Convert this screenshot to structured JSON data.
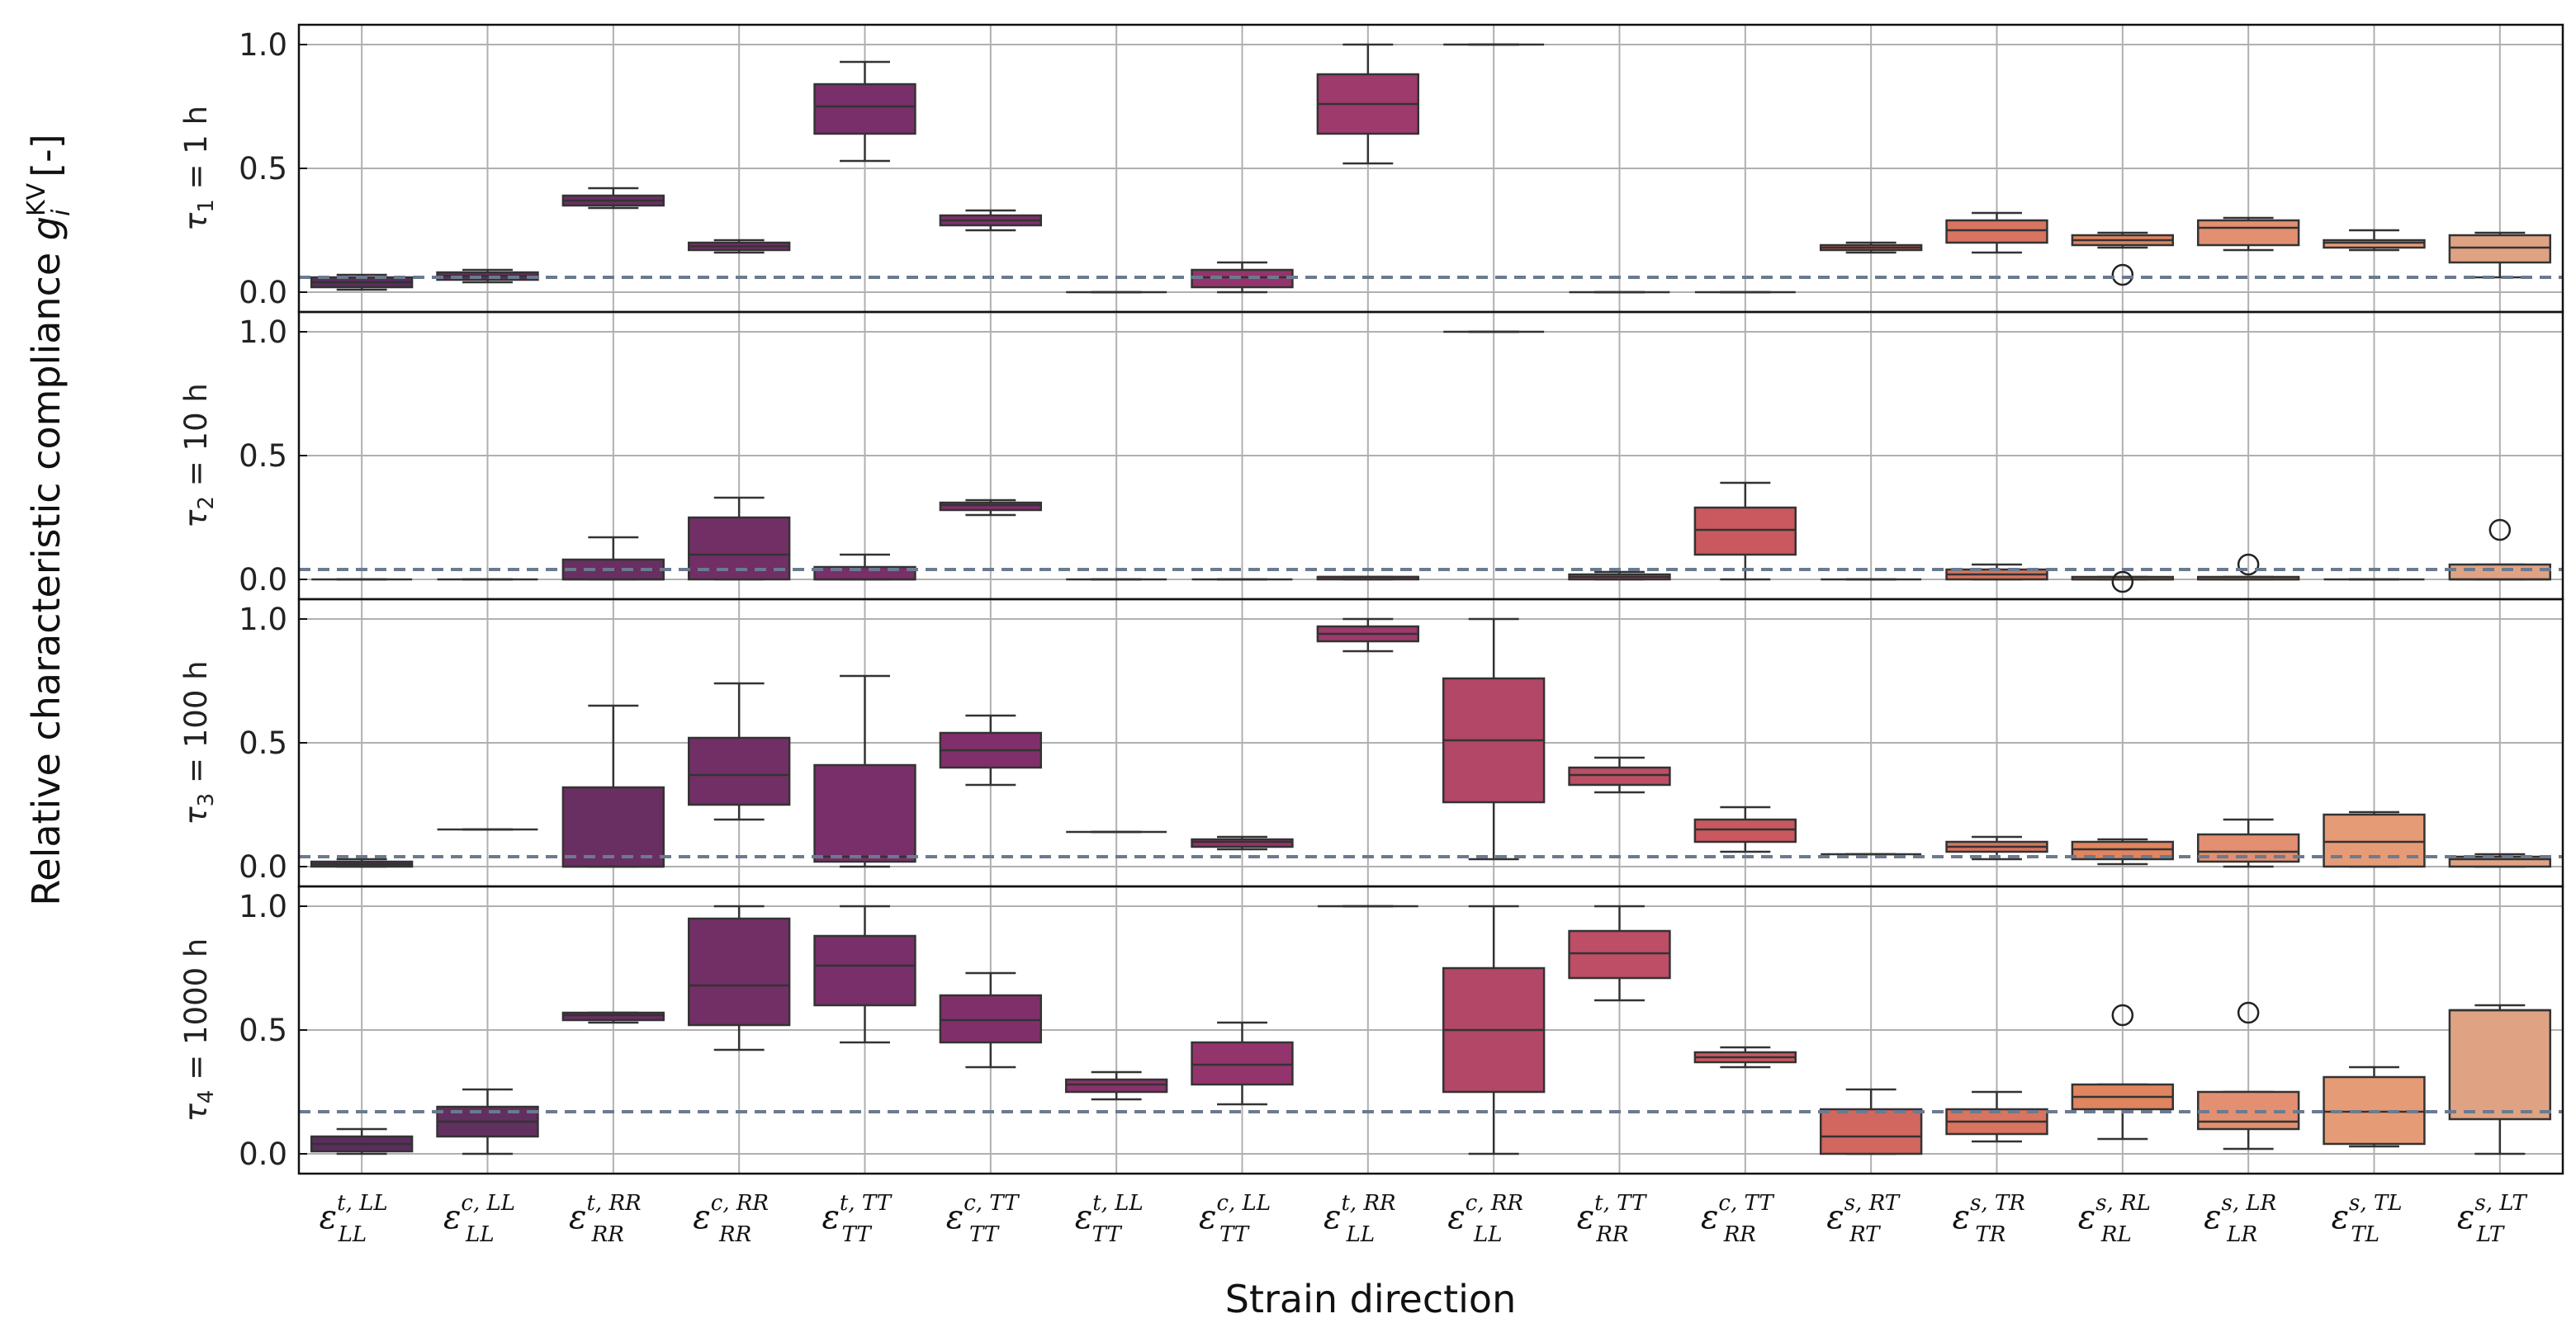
{
  "chart_data": {
    "type": "boxplot",
    "xlabel": "Strain direction",
    "ylabel": {
      "prefix": "Relative characteristic compliance ",
      "symbol": "g",
      "sub": "i",
      "sup": "KV",
      "suffix": " [-]"
    },
    "ylim": [
      -0.08,
      1.08
    ],
    "yticks": [
      0.0,
      0.5,
      1.0
    ],
    "ytick_labels": [
      "0.0",
      "0.5",
      "1.0"
    ],
    "categories": [
      {
        "sym": "ε",
        "sub": "LL",
        "sup": "t, LL"
      },
      {
        "sym": "ε",
        "sub": "LL",
        "sup": "c, LL"
      },
      {
        "sym": "ε",
        "sub": "RR",
        "sup": "t, RR"
      },
      {
        "sym": "ε",
        "sub": "RR",
        "sup": "c, RR"
      },
      {
        "sym": "ε",
        "sub": "TT",
        "sup": "t, TT"
      },
      {
        "sym": "ε",
        "sub": "TT",
        "sup": "c, TT"
      },
      {
        "sym": "ε",
        "sub": "TT",
        "sup": "t, LL"
      },
      {
        "sym": "ε",
        "sub": "TT",
        "sup": "c, LL"
      },
      {
        "sym": "ε",
        "sub": "LL",
        "sup": "t, RR"
      },
      {
        "sym": "ε",
        "sub": "LL",
        "sup": "c, RR"
      },
      {
        "sym": "ε",
        "sub": "RR",
        "sup": "t, TT"
      },
      {
        "sym": "ε",
        "sub": "RR",
        "sup": "c, TT"
      },
      {
        "sym": "ε",
        "sub": "RT",
        "sup": "s, RT"
      },
      {
        "sym": "ε",
        "sub": "TR",
        "sup": "s, TR"
      },
      {
        "sym": "ε",
        "sub": "RL",
        "sup": "s, RL"
      },
      {
        "sym": "ε",
        "sub": "LR",
        "sup": "s, LR"
      },
      {
        "sym": "ε",
        "sub": "TL",
        "sup": "s, TL"
      },
      {
        "sym": "ε",
        "sub": "LT",
        "sup": "s, LT"
      }
    ],
    "palette": [
      "#5a2d5e",
      "#61305f",
      "#692f62",
      "#712f66",
      "#792f69",
      "#812f6b",
      "#8a316c",
      "#94346c",
      "#9e3a6c",
      "#b34767",
      "#bd4e66",
      "#c9595f",
      "#d1675f",
      "#d8745f",
      "#e0855f",
      "#e29071",
      "#e69b77",
      "#dfa384"
    ],
    "reference_line_color": "#6b7a8f",
    "panels": [
      {
        "label": "τ1 = 1 h",
        "tau": "τ",
        "tau_sub": "1",
        "tau_rest": " = 1 h",
        "reference": 0.06,
        "boxes": [
          {
            "min": 0.01,
            "q1": 0.02,
            "med": 0.04,
            "q3": 0.06,
            "max": 0.07
          },
          {
            "min": 0.04,
            "q1": 0.05,
            "med": 0.065,
            "q3": 0.08,
            "max": 0.09
          },
          {
            "min": 0.34,
            "q1": 0.35,
            "med": 0.37,
            "q3": 0.39,
            "max": 0.42
          },
          {
            "min": 0.16,
            "q1": 0.17,
            "med": 0.185,
            "q3": 0.2,
            "max": 0.21
          },
          {
            "min": 0.53,
            "q1": 0.64,
            "med": 0.75,
            "q3": 0.84,
            "max": 0.93
          },
          {
            "min": 0.25,
            "q1": 0.27,
            "med": 0.29,
            "q3": 0.31,
            "max": 0.33
          },
          {
            "min": 0.0,
            "q1": 0.0,
            "med": 0.0,
            "q3": 0.0,
            "max": 0.0
          },
          {
            "min": 0.0,
            "q1": 0.02,
            "med": 0.06,
            "q3": 0.09,
            "max": 0.12
          },
          {
            "min": 0.52,
            "q1": 0.64,
            "med": 0.76,
            "q3": 0.88,
            "max": 1.0
          },
          {
            "min": 1.0,
            "q1": 1.0,
            "med": 1.0,
            "q3": 1.0,
            "max": 1.0
          },
          {
            "min": 0.0,
            "q1": 0.0,
            "med": 0.0,
            "q3": 0.0,
            "max": 0.0
          },
          {
            "min": 0.0,
            "q1": 0.0,
            "med": 0.0,
            "q3": 0.0,
            "max": 0.0
          },
          {
            "min": 0.16,
            "q1": 0.17,
            "med": 0.18,
            "q3": 0.19,
            "max": 0.2
          },
          {
            "min": 0.16,
            "q1": 0.2,
            "med": 0.25,
            "q3": 0.29,
            "max": 0.32
          },
          {
            "min": 0.18,
            "q1": 0.19,
            "med": 0.21,
            "q3": 0.23,
            "max": 0.24,
            "outliers": [
              0.07
            ]
          },
          {
            "min": 0.17,
            "q1": 0.19,
            "med": 0.26,
            "q3": 0.29,
            "max": 0.3
          },
          {
            "min": 0.17,
            "q1": 0.18,
            "med": 0.2,
            "q3": 0.21,
            "max": 0.25
          },
          {
            "min": 0.06,
            "q1": 0.12,
            "med": 0.18,
            "q3": 0.23,
            "max": 0.24
          }
        ]
      },
      {
        "label": "τ2 = 10 h",
        "tau": "τ",
        "tau_sub": "2",
        "tau_rest": " = 10 h",
        "reference": 0.04,
        "boxes": [
          {
            "min": 0.0,
            "q1": 0.0,
            "med": 0.0,
            "q3": 0.0,
            "max": 0.0
          },
          {
            "min": 0.0,
            "q1": 0.0,
            "med": 0.0,
            "q3": 0.0,
            "max": 0.0
          },
          {
            "min": 0.0,
            "q1": 0.0,
            "med": 0.0,
            "q3": 0.08,
            "max": 0.17
          },
          {
            "min": 0.0,
            "q1": 0.0,
            "med": 0.1,
            "q3": 0.25,
            "max": 0.33
          },
          {
            "min": 0.0,
            "q1": 0.0,
            "med": 0.0,
            "q3": 0.05,
            "max": 0.1
          },
          {
            "min": 0.26,
            "q1": 0.28,
            "med": 0.3,
            "q3": 0.31,
            "max": 0.32
          },
          {
            "min": 0.0,
            "q1": 0.0,
            "med": 0.0,
            "q3": 0.0,
            "max": 0.0
          },
          {
            "min": 0.0,
            "q1": 0.0,
            "med": 0.0,
            "q3": 0.0,
            "max": 0.0
          },
          {
            "min": 0.0,
            "q1": 0.0,
            "med": 0.01,
            "q3": 0.01,
            "max": 0.01
          },
          {
            "min": 1.0,
            "q1": 1.0,
            "med": 1.0,
            "q3": 1.0,
            "max": 1.0
          },
          {
            "min": 0.0,
            "q1": 0.0,
            "med": 0.01,
            "q3": 0.02,
            "max": 0.03
          },
          {
            "min": 0.0,
            "q1": 0.1,
            "med": 0.2,
            "q3": 0.29,
            "max": 0.39
          },
          {
            "min": 0.0,
            "q1": 0.0,
            "med": 0.0,
            "q3": 0.0,
            "max": 0.0
          },
          {
            "min": 0.0,
            "q1": 0.0,
            "med": 0.02,
            "q3": 0.04,
            "max": 0.06
          },
          {
            "min": 0.0,
            "q1": 0.0,
            "med": 0.0,
            "q3": 0.01,
            "max": 0.01,
            "outliers": [
              -0.01
            ]
          },
          {
            "min": 0.0,
            "q1": 0.0,
            "med": 0.0,
            "q3": 0.01,
            "max": 0.01,
            "outliers": [
              0.06
            ]
          },
          {
            "min": 0.0,
            "q1": 0.0,
            "med": 0.0,
            "q3": 0.0,
            "max": 0.0
          },
          {
            "min": 0.0,
            "q1": 0.0,
            "med": 0.0,
            "q3": 0.06,
            "max": 0.06,
            "outliers": [
              0.2
            ]
          }
        ]
      },
      {
        "label": "τ3 = 100 h",
        "tau": "τ",
        "tau_sub": "3",
        "tau_rest": " = 100 h",
        "reference": 0.04,
        "boxes": [
          {
            "min": 0.0,
            "q1": 0.0,
            "med": 0.01,
            "q3": 0.02,
            "max": 0.03
          },
          {
            "min": 0.15,
            "q1": 0.15,
            "med": 0.15,
            "q3": 0.15,
            "max": 0.15
          },
          {
            "min": 0.0,
            "q1": 0.0,
            "med": 0.0,
            "q3": 0.32,
            "max": 0.65
          },
          {
            "min": 0.19,
            "q1": 0.25,
            "med": 0.37,
            "q3": 0.52,
            "max": 0.74
          },
          {
            "min": 0.0,
            "q1": 0.02,
            "med": 0.04,
            "q3": 0.41,
            "max": 0.77
          },
          {
            "min": 0.33,
            "q1": 0.4,
            "med": 0.47,
            "q3": 0.54,
            "max": 0.61
          },
          {
            "min": 0.14,
            "q1": 0.14,
            "med": 0.14,
            "q3": 0.14,
            "max": 0.14
          },
          {
            "min": 0.07,
            "q1": 0.08,
            "med": 0.1,
            "q3": 0.11,
            "max": 0.12
          },
          {
            "min": 0.87,
            "q1": 0.91,
            "med": 0.94,
            "q3": 0.97,
            "max": 1.0
          },
          {
            "min": 0.03,
            "q1": 0.26,
            "med": 0.51,
            "q3": 0.76,
            "max": 1.0
          },
          {
            "min": 0.3,
            "q1": 0.33,
            "med": 0.37,
            "q3": 0.4,
            "max": 0.44
          },
          {
            "min": 0.06,
            "q1": 0.1,
            "med": 0.15,
            "q3": 0.19,
            "max": 0.24
          },
          {
            "min": 0.05,
            "q1": 0.05,
            "med": 0.05,
            "q3": 0.05,
            "max": 0.05
          },
          {
            "min": 0.03,
            "q1": 0.06,
            "med": 0.08,
            "q3": 0.1,
            "max": 0.12
          },
          {
            "min": 0.01,
            "q1": 0.03,
            "med": 0.07,
            "q3": 0.1,
            "max": 0.11
          },
          {
            "min": 0.0,
            "q1": 0.02,
            "med": 0.06,
            "q3": 0.13,
            "max": 0.19
          },
          {
            "min": 0.0,
            "q1": 0.0,
            "med": 0.1,
            "q3": 0.21,
            "max": 0.22
          },
          {
            "min": 0.0,
            "q1": 0.0,
            "med": 0.03,
            "q3": 0.04,
            "max": 0.05
          }
        ]
      },
      {
        "label": "τ4 = 1000 h",
        "tau": "τ",
        "tau_sub": "4",
        "tau_rest": " = 1000 h",
        "reference": 0.17,
        "boxes": [
          {
            "min": 0.0,
            "q1": 0.01,
            "med": 0.04,
            "q3": 0.07,
            "max": 0.1
          },
          {
            "min": 0.0,
            "q1": 0.07,
            "med": 0.13,
            "q3": 0.19,
            "max": 0.26
          },
          {
            "min": 0.53,
            "q1": 0.54,
            "med": 0.56,
            "q3": 0.57,
            "max": 0.57
          },
          {
            "min": 0.42,
            "q1": 0.52,
            "med": 0.68,
            "q3": 0.95,
            "max": 1.0
          },
          {
            "min": 0.45,
            "q1": 0.6,
            "med": 0.76,
            "q3": 0.88,
            "max": 1.0
          },
          {
            "min": 0.35,
            "q1": 0.45,
            "med": 0.54,
            "q3": 0.64,
            "max": 0.73
          },
          {
            "min": 0.22,
            "q1": 0.25,
            "med": 0.28,
            "q3": 0.3,
            "max": 0.33
          },
          {
            "min": 0.2,
            "q1": 0.28,
            "med": 0.36,
            "q3": 0.45,
            "max": 0.53
          },
          {
            "min": 1.0,
            "q1": 1.0,
            "med": 1.0,
            "q3": 1.0,
            "max": 1.0
          },
          {
            "min": 0.0,
            "q1": 0.25,
            "med": 0.5,
            "q3": 0.75,
            "max": 1.0
          },
          {
            "min": 0.62,
            "q1": 0.71,
            "med": 0.81,
            "q3": 0.9,
            "max": 1.0
          },
          {
            "min": 0.35,
            "q1": 0.37,
            "med": 0.39,
            "q3": 0.41,
            "max": 0.43
          },
          {
            "min": 0.0,
            "q1": 0.0,
            "med": 0.07,
            "q3": 0.18,
            "max": 0.26
          },
          {
            "min": 0.05,
            "q1": 0.08,
            "med": 0.13,
            "q3": 0.18,
            "max": 0.25
          },
          {
            "min": 0.06,
            "q1": 0.18,
            "med": 0.23,
            "q3": 0.28,
            "max": 0.28,
            "outliers": [
              0.56
            ]
          },
          {
            "min": 0.02,
            "q1": 0.1,
            "med": 0.13,
            "q3": 0.25,
            "max": 0.25,
            "outliers": [
              0.57
            ]
          },
          {
            "min": 0.03,
            "q1": 0.04,
            "med": 0.17,
            "q3": 0.31,
            "max": 0.35
          },
          {
            "min": 0.0,
            "q1": 0.14,
            "med": 0.58,
            "q3": 0.58,
            "max": 0.6
          }
        ]
      }
    ]
  }
}
